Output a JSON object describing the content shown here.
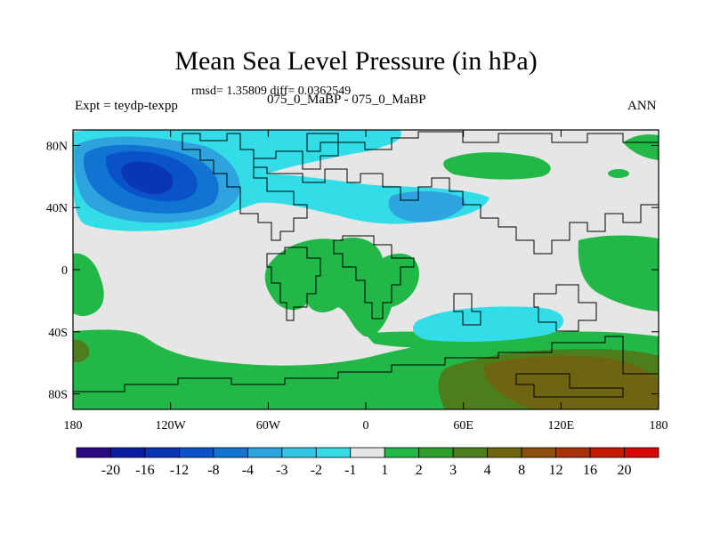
{
  "header": {
    "title": "Mean Sea Level Pressure (in hPa)",
    "stats": "rmsd= 1.35809 diff= 0.0362549",
    "experiment": "Expt = teydp-texpp",
    "subtitle": "075_0_MaBP - 075_0_MaBP",
    "season": "ANN"
  },
  "chart_data": {
    "type": "heatmap",
    "title": "Mean Sea Level Pressure (in hPa)",
    "units": "hPa",
    "x_axis": {
      "range": [
        -180,
        180
      ],
      "ticks": [
        -180,
        -120,
        -60,
        0,
        60,
        120,
        180
      ],
      "tick_labels": [
        "180",
        "120W",
        "60W",
        "0",
        "60E",
        "120E",
        "180"
      ]
    },
    "y_axis": {
      "range": [
        -90,
        90
      ],
      "ticks": [
        80,
        40,
        0,
        -40,
        -80
      ],
      "tick_labels": [
        "80N",
        "40N",
        "0",
        "40S",
        "80S"
      ]
    },
    "colorbar": {
      "colors": [
        "#2a0a82",
        "#0b1d9e",
        "#0a35b6",
        "#0a52c8",
        "#1173d2",
        "#2ea3dd",
        "#33c6e6",
        "#33dde8",
        "#e6e6e6",
        "#22b847",
        "#2e9e2e",
        "#4e7d1c",
        "#6e6412",
        "#8a4e0e",
        "#a83208",
        "#c41a04",
        "#d90808"
      ],
      "labels": [
        "-20",
        "-16",
        "-12",
        "-8",
        "-4",
        "-3",
        "-2",
        "-1",
        "1",
        "2",
        "3",
        "4",
        "8",
        "12",
        "16",
        "20"
      ]
    },
    "regions": [
      {
        "name": "north-pacific-low",
        "level": "-3 to -1",
        "center": [
          -135,
          52
        ],
        "color": "#33dde8"
      },
      {
        "name": "north-pacific-low-core",
        "level": "-12 to -4",
        "center": [
          -135,
          48
        ],
        "color": "#0a52c8"
      },
      {
        "name": "eurasian-low",
        "level": "-2 to -1",
        "center": [
          30,
          32
        ],
        "color": "#2ea3dd"
      },
      {
        "name": "southern-indian-low",
        "level": "-1",
        "center": [
          60,
          -33
        ],
        "color": "#33dde8"
      },
      {
        "name": "southern-ocean-high",
        "level": "1 to 3",
        "center": [
          90,
          -75
        ],
        "color": "#4e7d1c"
      },
      {
        "name": "tropical-high",
        "level": "1 to 2",
        "center": [
          -10,
          -10
        ],
        "color": "#22b847"
      }
    ]
  }
}
